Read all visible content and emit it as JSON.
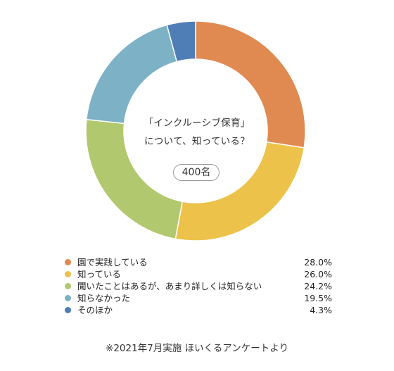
{
  "chart_data": {
    "type": "pie",
    "style": "donut",
    "title": "",
    "center_text": [
      "「インクルーシブ保育」",
      "について、知っている？"
    ],
    "sample_size": "400名",
    "categories": [
      "園で実践している",
      "知っている",
      "聞いたことはあるが、あまり詳しくは知らない",
      "知らなかった",
      "そのほか"
    ],
    "values": [
      28.0,
      26.0,
      24.2,
      19.5,
      4.3
    ],
    "value_labels": [
      "28.0%",
      "26.0%",
      "24.2%",
      "19.5%",
      "4.3%"
    ],
    "colors": [
      "#e08a52",
      "#ecc24a",
      "#b2c86f",
      "#7db1c6",
      "#4f7eb6"
    ],
    "legend_placement": "bottom"
  },
  "footnote": "※2021年7月実施 ほいくるアンケートより"
}
